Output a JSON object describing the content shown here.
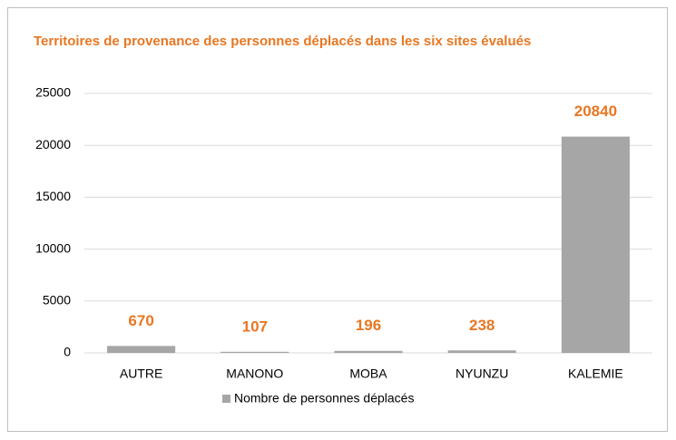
{
  "chart_data": {
    "type": "bar",
    "title": "Territoires de provenance des personnes déplacés dans les six sites évalués",
    "categories": [
      "AUTRE",
      "MANONO",
      "MOBA",
      "NYUNZU",
      "KALEMIE"
    ],
    "series": [
      {
        "name": "Nombre de personnes déplacés",
        "color": "#a6a6a6",
        "values": [
          670,
          107,
          196,
          238,
          20840
        ]
      }
    ],
    "ylim": [
      0,
      25000
    ],
    "yticks": [
      0,
      5000,
      10000,
      15000,
      20000,
      25000
    ],
    "grid": true,
    "label_color": "#e87722",
    "legend": "bottom"
  }
}
